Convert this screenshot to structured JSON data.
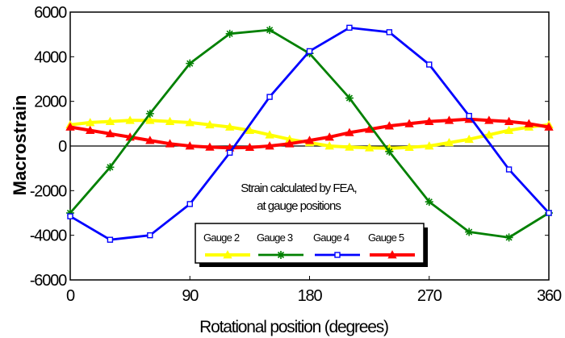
{
  "chart_data": {
    "type": "line",
    "title": "",
    "xlabel": "Rotational position (degrees)",
    "ylabel": "Macrostrain",
    "xlim": [
      0,
      360
    ],
    "ylim": [
      -6000,
      6000
    ],
    "xticks": [
      0,
      90,
      180,
      270,
      360
    ],
    "yticks": [
      6000,
      4000,
      2000,
      0,
      -2000,
      -4000,
      -6000
    ],
    "xtick_labels": [
      "0",
      "90",
      "180",
      "270",
      "360"
    ],
    "ytick_labels": [
      "6000",
      "4000",
      "2000",
      "0",
      "-2000",
      "-4000",
      "-6000"
    ],
    "annotation": [
      "Strain calculated by FEA,",
      "at gauge positions"
    ],
    "grid": false,
    "legend_position": "bottom-center",
    "series": [
      {
        "name": "Gauge 2",
        "color": "#ffff00",
        "marker": "triangle",
        "x": [
          0,
          15,
          30,
          45,
          60,
          75,
          90,
          105,
          120,
          135,
          150,
          165,
          180,
          195,
          210,
          225,
          240,
          255,
          270,
          285,
          300,
          315,
          330,
          345,
          360
        ],
        "y": [
          950,
          1050,
          1100,
          1150,
          1150,
          1100,
          1050,
          950,
          850,
          700,
          500,
          300,
          150,
          0,
          -50,
          -80,
          -100,
          -60,
          0,
          150,
          300,
          500,
          700,
          850,
          950
        ]
      },
      {
        "name": "Gauge 3",
        "color": "#008000",
        "marker": "star",
        "x": [
          0,
          30,
          60,
          90,
          120,
          150,
          180,
          210,
          240,
          270,
          300,
          330,
          360
        ],
        "y": [
          -3000,
          -950,
          1450,
          3700,
          5030,
          5200,
          4150,
          2150,
          -250,
          -2500,
          -3850,
          -4100,
          -3000
        ]
      },
      {
        "name": "Gauge 4",
        "color": "#0000ff",
        "marker": "square",
        "x": [
          0,
          30,
          60,
          90,
          120,
          150,
          180,
          210,
          240,
          270,
          300,
          330,
          360
        ],
        "y": [
          -3150,
          -4200,
          -4000,
          -2600,
          -300,
          2200,
          4250,
          5300,
          5100,
          3650,
          1350,
          -1050,
          -3000
        ]
      },
      {
        "name": "Gauge 5",
        "color": "#ff0000",
        "marker": "triangle",
        "x": [
          0,
          15,
          30,
          45,
          60,
          75,
          90,
          105,
          120,
          135,
          150,
          165,
          180,
          195,
          210,
          225,
          240,
          255,
          270,
          285,
          300,
          315,
          330,
          345,
          360
        ],
        "y": [
          850,
          700,
          550,
          400,
          250,
          100,
          0,
          -50,
          -80,
          -60,
          0,
          100,
          250,
          400,
          600,
          750,
          900,
          1000,
          1100,
          1150,
          1200,
          1150,
          1100,
          1000,
          850
        ]
      }
    ]
  }
}
